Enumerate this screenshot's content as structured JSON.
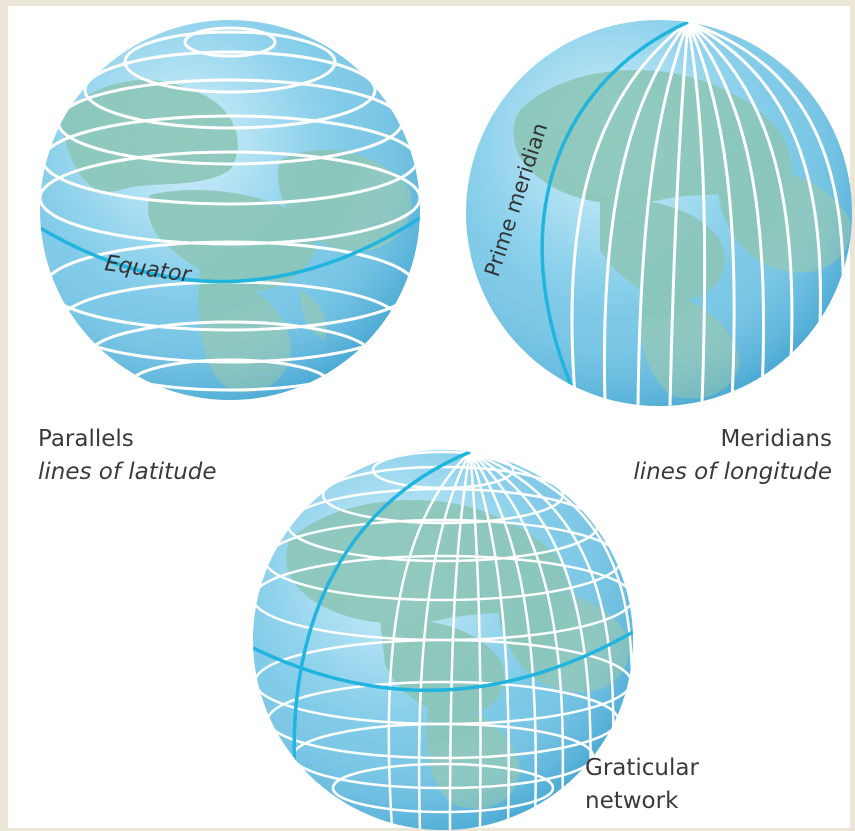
{
  "colors": {
    "ocean": "#7cc8e6",
    "land": "#8cc6b8",
    "grid_line": "#ffffff",
    "highlight_line": "#21b4df",
    "label_text": "#3a3a3a"
  },
  "globes": {
    "parallels": {
      "line_label": "Equator",
      "caption": "Parallels",
      "caption_italic": "lines of latitude"
    },
    "meridians": {
      "line_label": "Prime meridian",
      "caption": "Meridians",
      "caption_italic": "lines of longitude"
    },
    "graticule": {
      "caption_line1": "Graticular",
      "caption_line2": "network"
    }
  }
}
